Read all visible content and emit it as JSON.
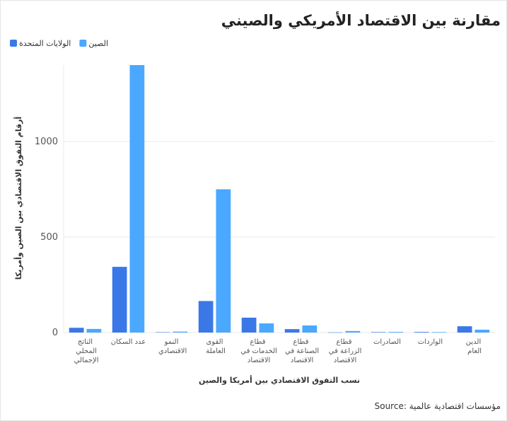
{
  "chart_data": {
    "type": "bar",
    "title": "مقارنة بين الاقتصاد الأمريكي والصيني",
    "x_label": "نسب التفوق الاقتصادي بين أمريكا والصين",
    "y_label": "أرقام التفوق الاقتصادي بين الصين وأمريكا",
    "source": "Source: مؤسسات اقتصادية عالمية",
    "categories": [
      "الناتج المحلي الإجمالي",
      "عدد السكان",
      "النمو الاقتصادي",
      "القوى العاملة",
      "قطاع الخدمات في الاقتصاد",
      "قطاع الصناعة في الاقتصاد",
      "قطاع الزراعة في الاقتصاد",
      "الصادرات",
      "الواردات",
      "الدين العام"
    ],
    "series": [
      {
        "name": "الولايات المتحدة",
        "color": "#3b78e7",
        "values": [
          25,
          344,
          2,
          165,
          78,
          18,
          1,
          2.5,
          3.2,
          33
        ]
      },
      {
        "name": "الصين",
        "color": "#4aa8ff",
        "values": [
          19,
          1400,
          5,
          750,
          48,
          37,
          8,
          3.5,
          2.7,
          15
        ]
      }
    ],
    "ylim": [
      0,
      1400
    ],
    "yticks": [
      0,
      500,
      1000
    ],
    "grid": true
  }
}
